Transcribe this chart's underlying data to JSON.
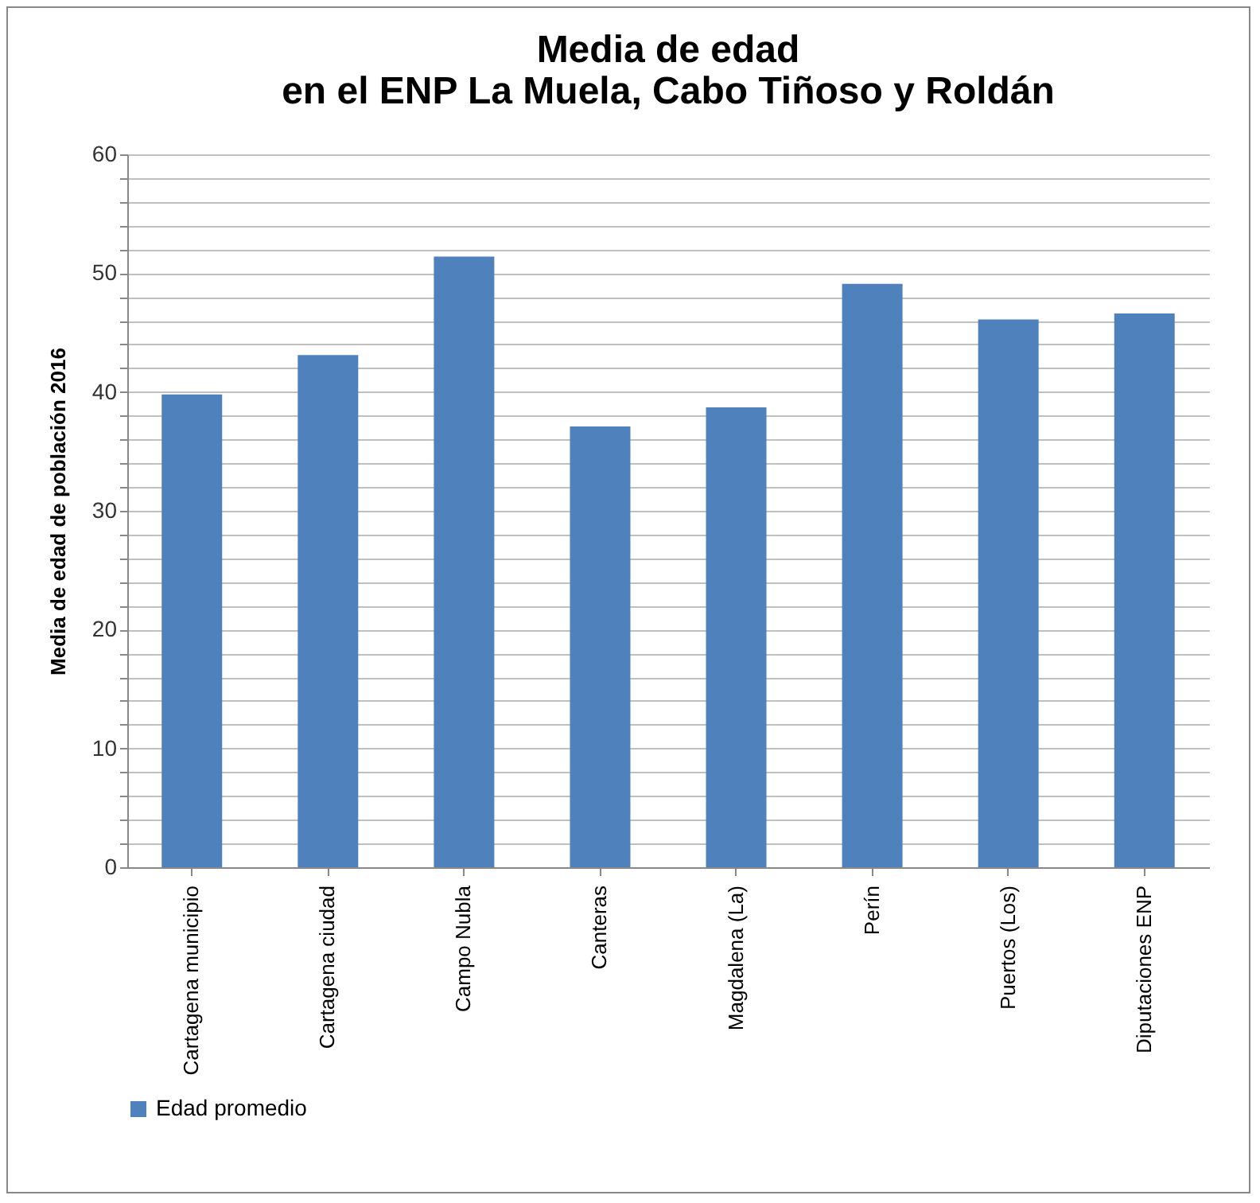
{
  "chart_data": {
    "type": "bar",
    "title": [
      "Media de edad",
      "en el ENP La Muela, Cabo Tiñoso y Roldán"
    ],
    "ylabel": "Media de edad de población 2016",
    "categories": [
      "Cartagena municipio",
      "Cartagena ciudad",
      "Campo Nubla",
      "Canteras",
      "Magdalena (La)",
      "Perín",
      "Puertos (Los)",
      "Diputaciones ENP"
    ],
    "series": [
      {
        "name": "Edad promedio",
        "color": "#4f81bd",
        "values": [
          39.8,
          43.1,
          51.4,
          37.1,
          38.7,
          49.1,
          46.1,
          46.6
        ]
      }
    ],
    "ylim": [
      0,
      60
    ],
    "yticks": [
      0,
      {
        "value": 2,
        "label": null
      },
      {
        "value": 4,
        "label": null
      },
      {
        "value": 6,
        "label": null
      },
      {
        "value": 8,
        "label": null
      },
      10,
      {
        "value": 12,
        "label": null
      },
      {
        "value": 14,
        "label": null
      },
      {
        "value": 16,
        "label": null
      },
      {
        "value": 18,
        "label": null
      },
      20,
      {
        "value": 22,
        "label": null
      },
      {
        "value": 24,
        "label": null
      },
      {
        "value": 26,
        "label": null
      },
      {
        "value": 28,
        "label": null
      },
      30,
      {
        "value": 32,
        "label": null
      },
      {
        "value": 34,
        "label": null
      },
      {
        "value": 36,
        "label": null
      },
      {
        "value": 38,
        "label": null
      },
      40,
      {
        "value": 42,
        "label": null
      },
      {
        "value": 44,
        "label": null
      },
      {
        "value": 46,
        "label": null
      },
      {
        "value": 48,
        "label": null
      },
      50,
      {
        "value": 52,
        "label": null
      },
      {
        "value": 54,
        "label": null
      },
      {
        "value": 56,
        "label": null
      },
      {
        "value": 58,
        "label": null
      },
      60
    ],
    "grid": "y",
    "legend": "bottom"
  }
}
